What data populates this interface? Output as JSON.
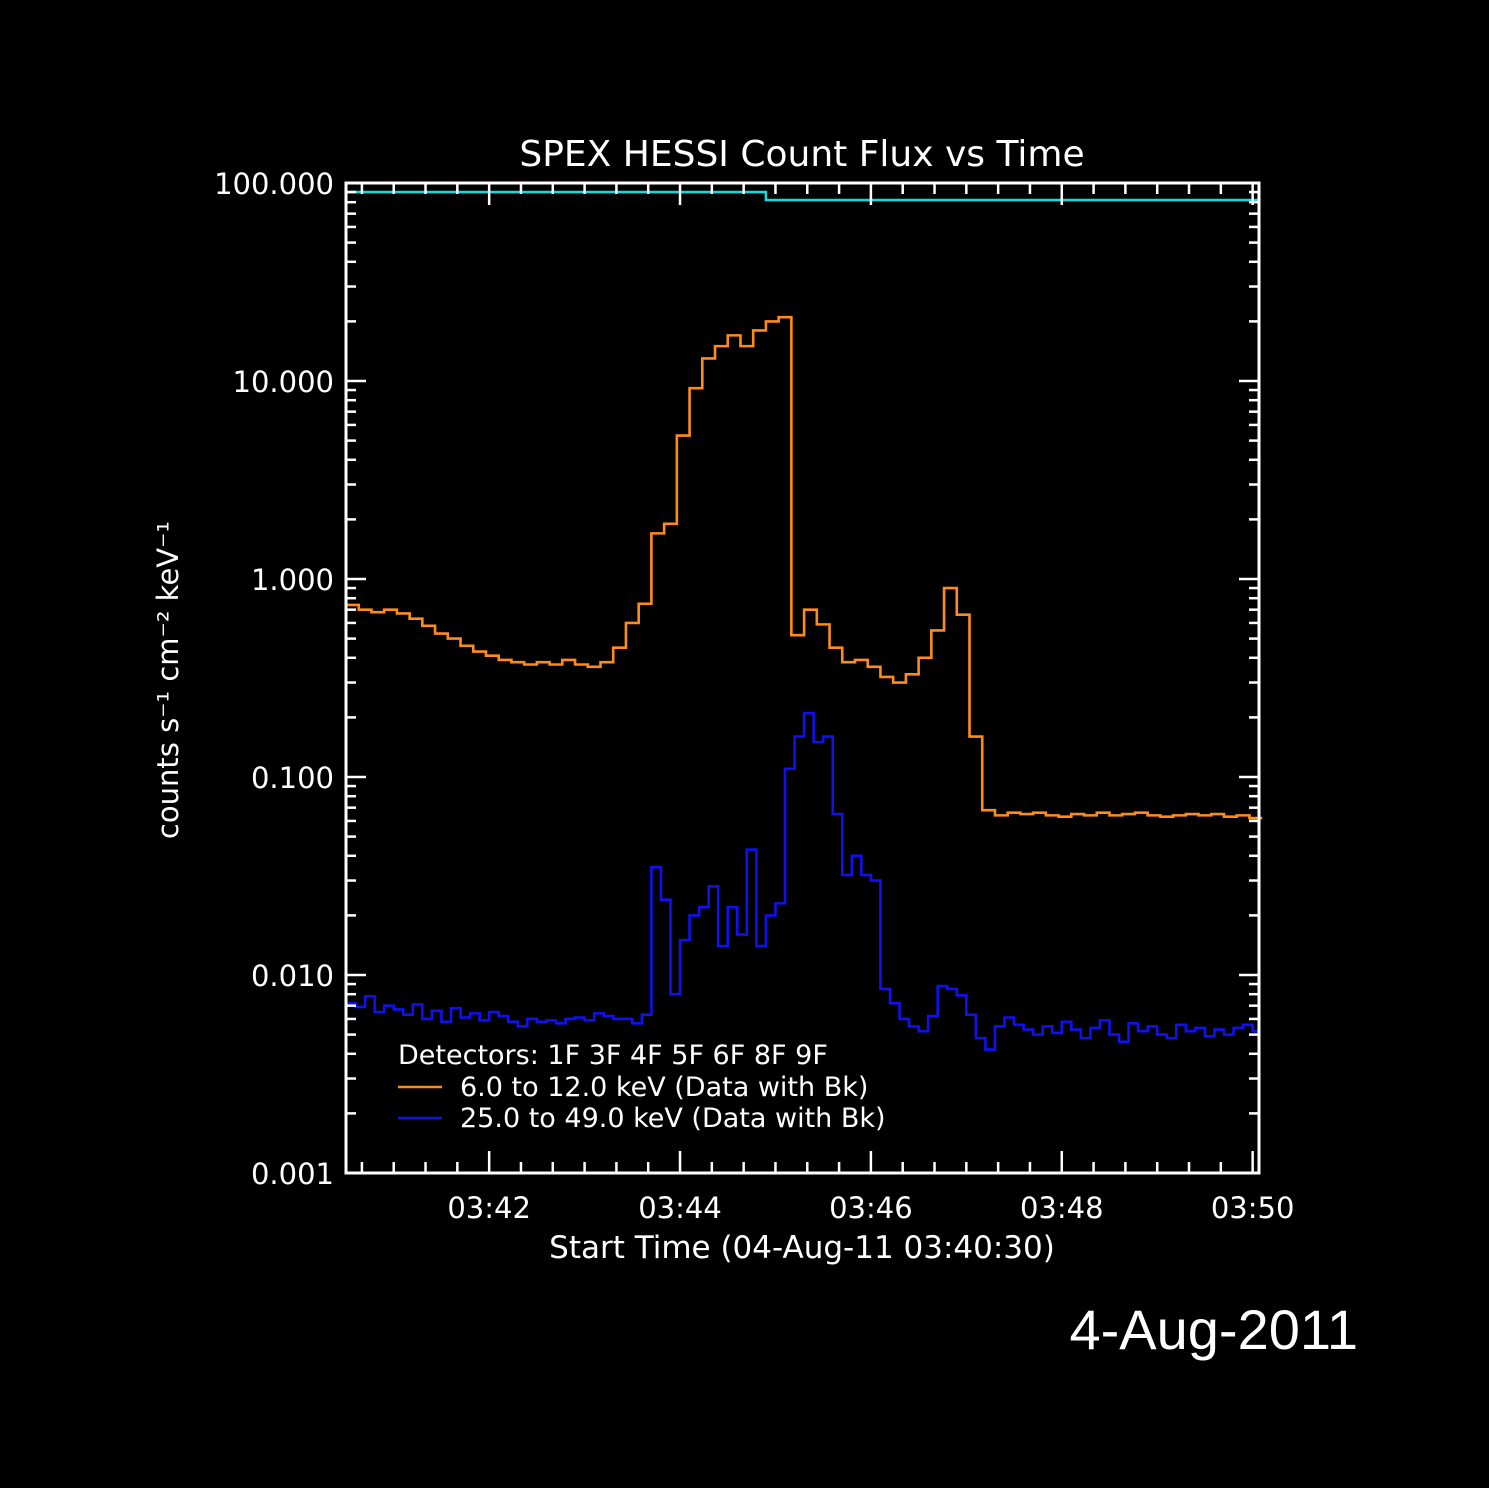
{
  "chart_data": {
    "type": "line",
    "title": "SPEX HESSI Count Flux vs Time",
    "xlabel": "Start Time (04-Aug-11 03:40:30)",
    "ylabel": "counts s⁻¹ cm⁻² keV⁻¹",
    "y_scale": "log",
    "ylim": [
      0.001,
      100
    ],
    "xlim": [
      "03:40:30",
      "03:50:04"
    ],
    "x_ticks": [
      "03:42",
      "03:44",
      "03:46",
      "03:48",
      "03:50"
    ],
    "y_ticks": [
      "0.001",
      "0.010",
      "0.100",
      "1.000",
      "10.000",
      "100.000"
    ],
    "legend": {
      "placement": "bottom-left",
      "header": "Detectors: 1F 3F 4F 5F 6F 8F 9F",
      "entries": [
        "6.0 to 12.0 keV (Data with Bk)",
        "25.0 to 49.0 keV (Data with Bk)"
      ]
    },
    "series": [
      {
        "name": "6.0 to 12.0 keV (Data with Bk)",
        "color": "#ff8c1a",
        "step": "post",
        "x_seconds": [
          0,
          8,
          16,
          24,
          32,
          40,
          48,
          56,
          64,
          72,
          80,
          88,
          96,
          104,
          112,
          120,
          128,
          136,
          144,
          152,
          160,
          168,
          176,
          184,
          192,
          200,
          208,
          216,
          224,
          232,
          240,
          248,
          256,
          264,
          272,
          280,
          288,
          296,
          304,
          312,
          320,
          328,
          336,
          344,
          352,
          360,
          368,
          376,
          384,
          392,
          400,
          408,
          416,
          424,
          432,
          440,
          448,
          456,
          464,
          472,
          480,
          488,
          496,
          504,
          512,
          520,
          528,
          536,
          544,
          552,
          560,
          568,
          576
        ],
        "values": [
          0.74,
          0.7,
          0.68,
          0.7,
          0.67,
          0.63,
          0.58,
          0.53,
          0.5,
          0.46,
          0.43,
          0.41,
          0.39,
          0.38,
          0.37,
          0.38,
          0.37,
          0.39,
          0.37,
          0.36,
          0.38,
          0.45,
          0.6,
          0.75,
          1.7,
          1.9,
          5.3,
          9.2,
          13,
          15,
          17,
          15,
          18,
          20,
          21,
          0.52,
          0.7,
          0.59,
          0.45,
          0.38,
          0.39,
          0.36,
          0.32,
          0.3,
          0.33,
          0.4,
          0.55,
          0.9,
          0.66,
          0.16,
          0.068,
          0.064,
          0.066,
          0.065,
          0.066,
          0.064,
          0.063,
          0.065,
          0.064,
          0.066,
          0.064,
          0.065,
          0.066,
          0.064,
          0.063,
          0.064,
          0.065,
          0.064,
          0.065,
          0.063,
          0.064,
          0.062,
          0.062
        ],
        "drop_at_end": 0.005
      },
      {
        "name": "25.0 to 49.0 keV (Data with Bk)",
        "color": "#1010f0",
        "step": "post",
        "x_seconds": [
          0,
          6,
          12,
          18,
          24,
          30,
          36,
          42,
          48,
          54,
          60,
          66,
          72,
          78,
          84,
          90,
          96,
          102,
          108,
          114,
          120,
          126,
          132,
          138,
          144,
          150,
          156,
          162,
          168,
          174,
          180,
          186,
          192,
          198,
          204,
          210,
          216,
          222,
          228,
          234,
          240,
          246,
          252,
          258,
          264,
          270,
          276,
          282,
          288,
          294,
          300,
          306,
          312,
          318,
          324,
          330,
          336,
          342,
          348,
          354,
          360,
          366,
          372,
          378,
          384,
          390,
          396,
          402,
          408,
          414,
          420,
          426,
          432,
          438,
          444,
          450,
          456,
          462,
          468,
          474,
          480,
          486,
          492,
          498,
          504,
          510,
          516,
          522,
          528,
          534,
          540,
          546,
          552,
          558,
          564,
          570
        ],
        "values": [
          0.0072,
          0.0069,
          0.0078,
          0.0065,
          0.007,
          0.0067,
          0.0063,
          0.0071,
          0.006,
          0.0066,
          0.0058,
          0.0068,
          0.0061,
          0.0064,
          0.0059,
          0.0065,
          0.0062,
          0.0058,
          0.0055,
          0.006,
          0.0058,
          0.0059,
          0.0057,
          0.006,
          0.0061,
          0.0059,
          0.0064,
          0.0062,
          0.006,
          0.006,
          0.0057,
          0.0063,
          0.035,
          0.024,
          0.008,
          0.015,
          0.02,
          0.022,
          0.028,
          0.014,
          0.022,
          0.016,
          0.043,
          0.014,
          0.02,
          0.023,
          0.11,
          0.16,
          0.21,
          0.15,
          0.16,
          0.065,
          0.032,
          0.04,
          0.032,
          0.03,
          0.0085,
          0.0072,
          0.006,
          0.0055,
          0.0052,
          0.0062,
          0.0088,
          0.0085,
          0.0079,
          0.0063,
          0.0048,
          0.0042,
          0.0055,
          0.0061,
          0.0056,
          0.0053,
          0.005,
          0.0055,
          0.0051,
          0.0058,
          0.0053,
          0.0048,
          0.0054,
          0.0059,
          0.005,
          0.0046,
          0.0057,
          0.0052,
          0.0055,
          0.005,
          0.0048,
          0.0056,
          0.0052,
          0.0054,
          0.0049,
          0.0053,
          0.005,
          0.0054,
          0.0056,
          0.0052
        ],
        "drop_at_end": 0.001
      },
      {
        "name": "",
        "color": "#22d4d4",
        "step": "post",
        "x_seconds": [
          0,
          262,
          264,
          574
        ],
        "values": [
          90,
          90,
          82,
          82
        ]
      }
    ]
  },
  "annotation_date": "4-Aug-2011"
}
